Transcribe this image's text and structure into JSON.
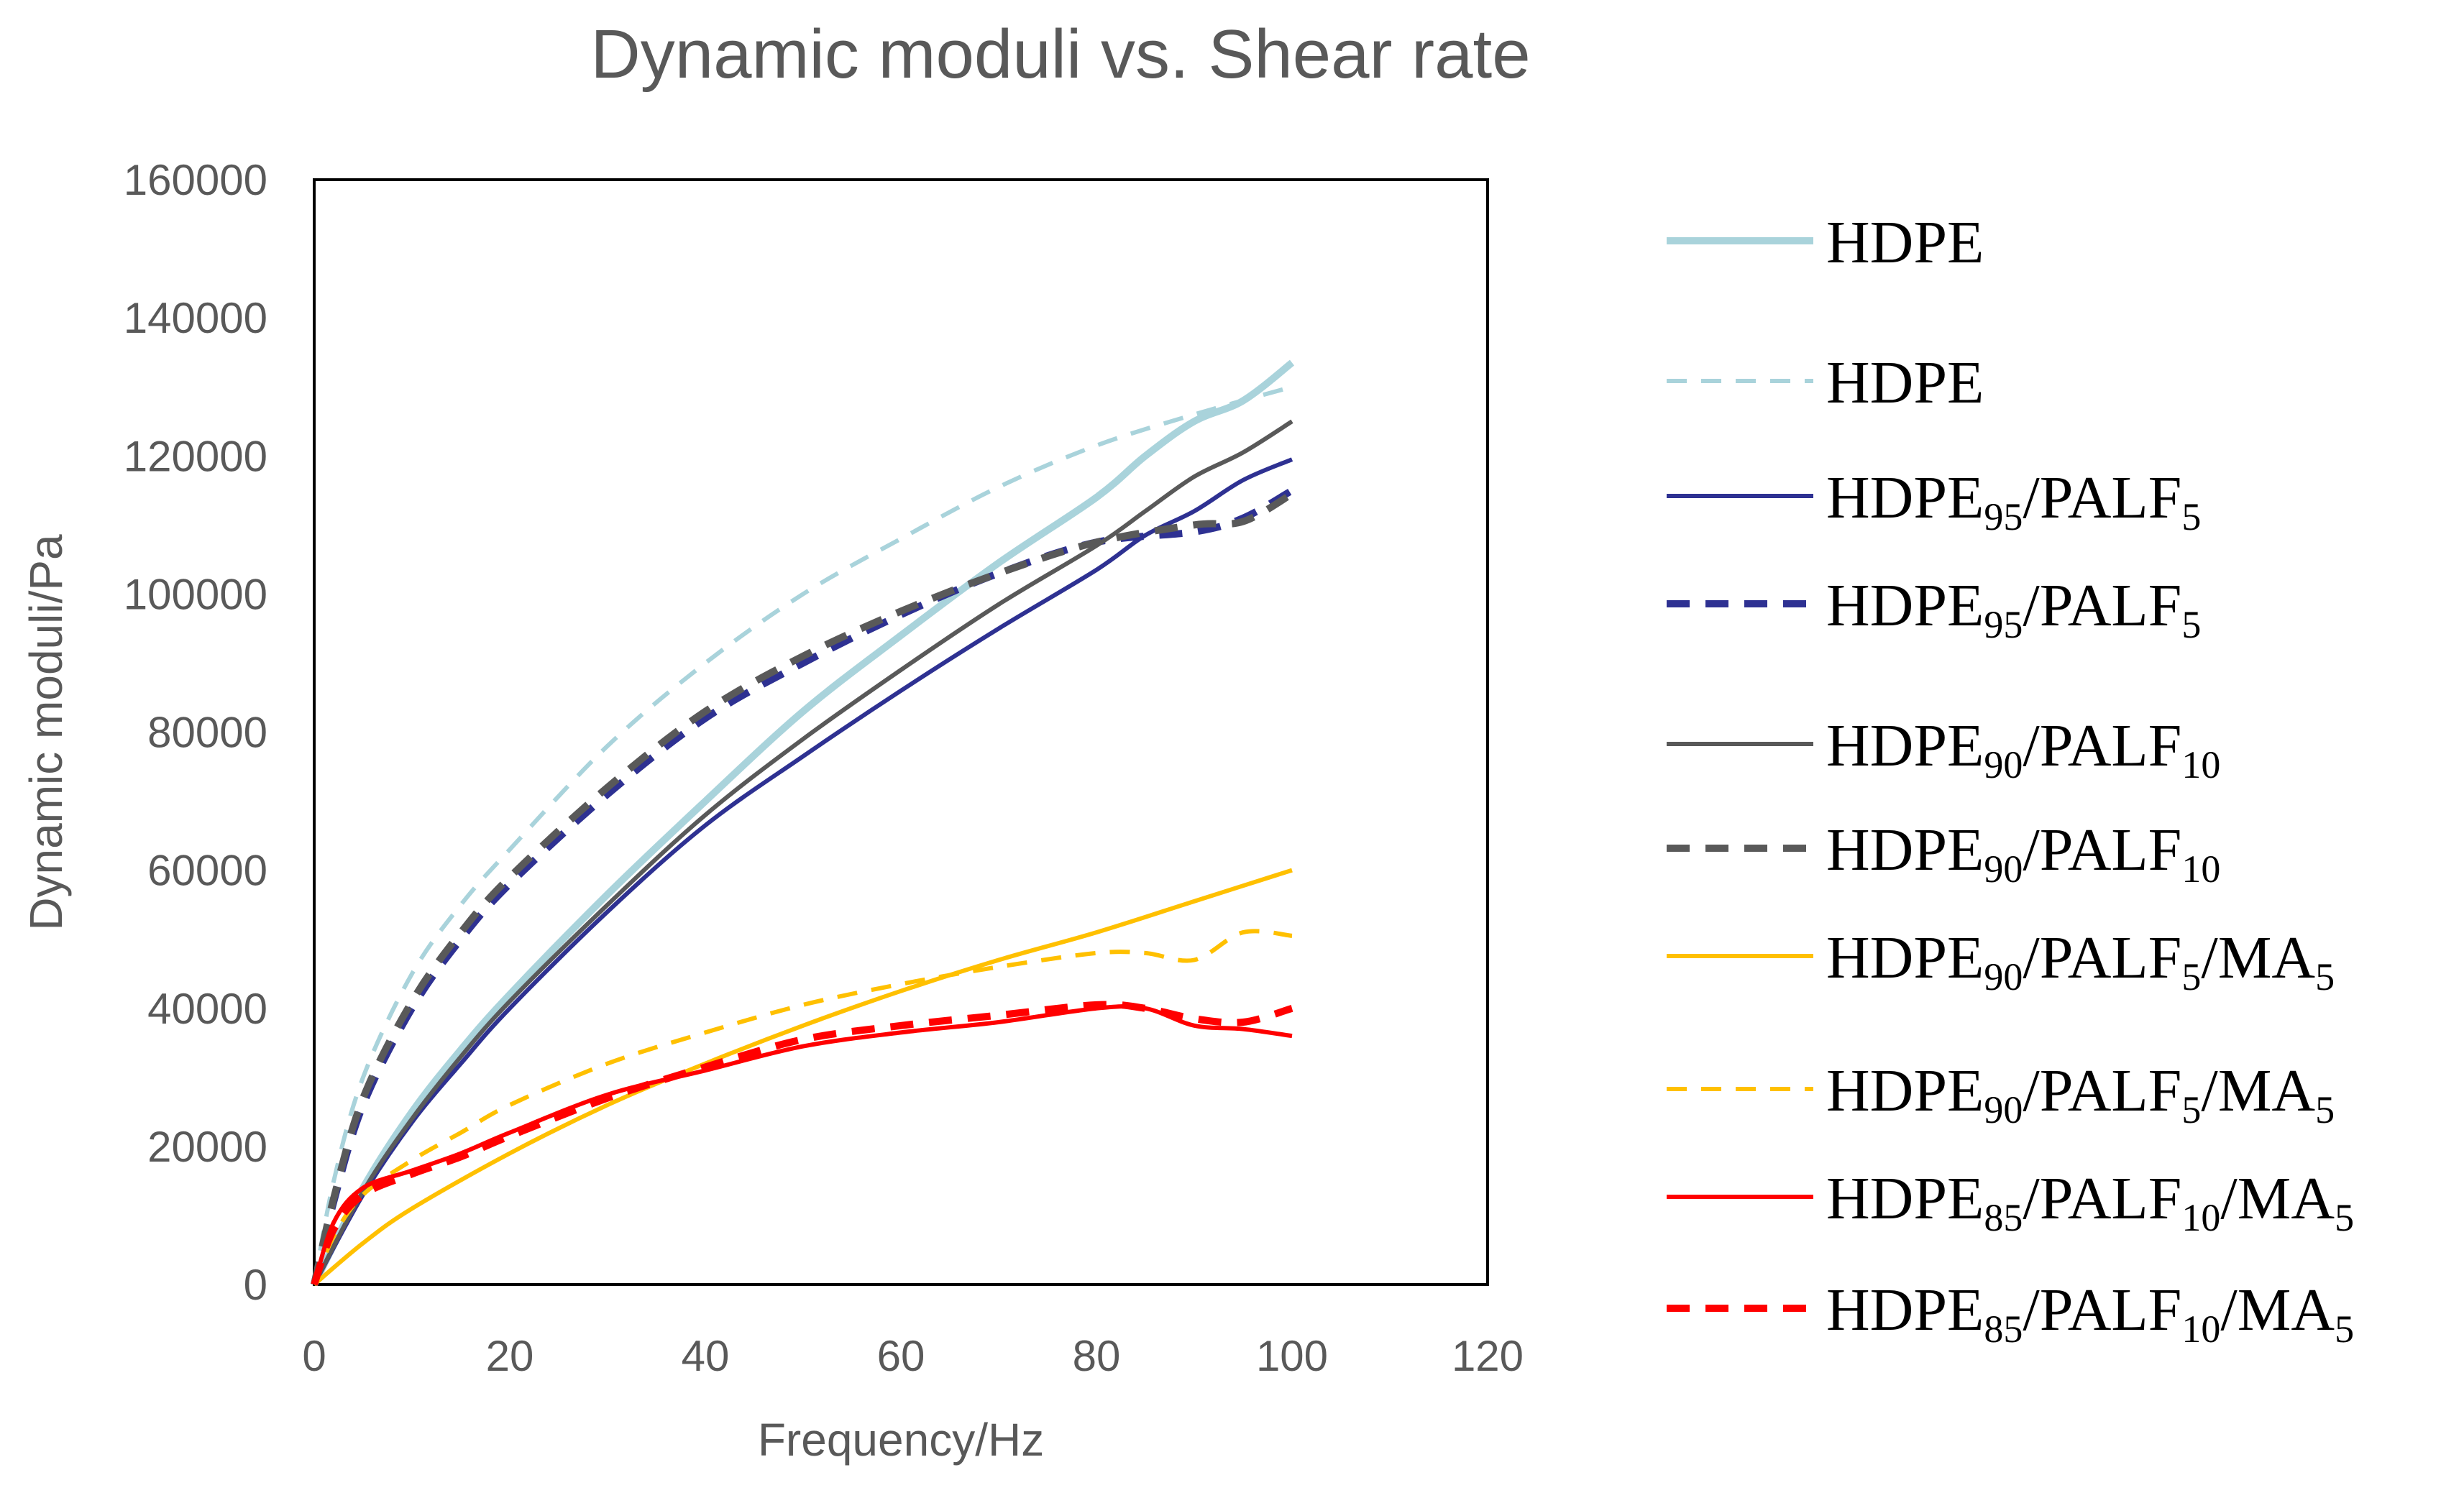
{
  "chart_data": {
    "type": "line",
    "title": "Dynamic moduli vs. Shear rate",
    "xlabel": "Frequency/Hz",
    "ylabel": "Dynamic moduli/Pa",
    "xlim": [
      0,
      120
    ],
    "ylim": [
      0,
      160000
    ],
    "xticks": [
      0,
      20,
      40,
      60,
      80,
      100,
      120
    ],
    "yticks": [
      0,
      20000,
      40000,
      60000,
      80000,
      100000,
      120000,
      140000,
      160000
    ],
    "xtick_labels": [
      "0",
      "20",
      "40",
      "60",
      "80",
      "100",
      "120"
    ],
    "ytick_labels": [
      "0",
      "20000",
      "40000",
      "60000",
      "80000",
      "100000",
      "120000",
      "140000",
      "160000"
    ],
    "grid": false,
    "legend_position": "right",
    "series": [
      {
        "name": "HDPE",
        "label_parts": [
          {
            "t": "HDPE"
          }
        ],
        "color": "#A9D3DB",
        "dash": "solid",
        "width": 10,
        "x": [
          0,
          5,
          10,
          15,
          20,
          30,
          40,
          50,
          60,
          70,
          80,
          85,
          90,
          95,
          100
        ],
        "y": [
          0,
          14000,
          25000,
          34000,
          42000,
          56500,
          70000,
          83000,
          94000,
          104500,
          114000,
          120000,
          125000,
          128000,
          133500
        ]
      },
      {
        "name": "HDPE",
        "label_parts": [
          {
            "t": "HDPE"
          }
        ],
        "color": "#A9D3DB",
        "dash": "dashed",
        "width": 6,
        "x": [
          0,
          2,
          5,
          10,
          15,
          20,
          30,
          40,
          50,
          60,
          70,
          80,
          90,
          100
        ],
        "y": [
          0,
          15000,
          30000,
          45000,
          55000,
          63000,
          78000,
          90000,
          100000,
          108000,
          115500,
          121500,
          126000,
          130000
        ]
      },
      {
        "name": "HDPE95/PALF5",
        "label_parts": [
          {
            "t": "HDPE"
          },
          {
            "t": "95",
            "sub": true
          },
          {
            "t": "/PALF"
          },
          {
            "t": "5",
            "sub": true
          }
        ],
        "color": "#2E3192",
        "dash": "solid",
        "width": 6,
        "x": [
          0,
          5,
          10,
          15,
          20,
          30,
          40,
          50,
          60,
          70,
          80,
          85,
          90,
          95,
          100
        ],
        "y": [
          0,
          13000,
          23500,
          32000,
          40000,
          54000,
          66500,
          76500,
          86000,
          95000,
          103500,
          108500,
          112000,
          116500,
          119500
        ]
      },
      {
        "name": "HDPE95/PALF5",
        "label_parts": [
          {
            "t": "HDPE"
          },
          {
            "t": "95",
            "sub": true
          },
          {
            "t": "/PALF"
          },
          {
            "t": "5",
            "sub": true
          }
        ],
        "color": "#2E3192",
        "dash": "dashed",
        "width": 10,
        "x": [
          0,
          2,
          5,
          10,
          15,
          20,
          30,
          40,
          50,
          60,
          70,
          80,
          90,
          95,
          100
        ],
        "y": [
          0,
          12000,
          26000,
          40000,
          50000,
          58000,
          71000,
          82000,
          90000,
          97000,
          103000,
          107500,
          109000,
          111000,
          115000
        ]
      },
      {
        "name": "HDPE90/PALF10",
        "label_parts": [
          {
            "t": "HDPE"
          },
          {
            "t": "90",
            "sub": true
          },
          {
            "t": "/PALF"
          },
          {
            "t": "10",
            "sub": true
          }
        ],
        "color": "#595959",
        "dash": "solid",
        "width": 6,
        "x": [
          0,
          5,
          10,
          15,
          20,
          30,
          40,
          50,
          60,
          70,
          80,
          85,
          90,
          95,
          100
        ],
        "y": [
          0,
          13500,
          24000,
          33000,
          41000,
          55000,
          68000,
          79000,
          89000,
          98500,
          107000,
          112000,
          117000,
          120500,
          125000
        ]
      },
      {
        "name": "HDPE90/PALF10",
        "label_parts": [
          {
            "t": "HDPE"
          },
          {
            "t": "90",
            "sub": true
          },
          {
            "t": "/PALF"
          },
          {
            "t": "10",
            "sub": true
          }
        ],
        "color": "#595959",
        "dash": "dashed",
        "width": 10,
        "x": [
          0,
          2,
          5,
          10,
          15,
          20,
          30,
          40,
          50,
          60,
          70,
          80,
          90,
          95,
          100
        ],
        "y": [
          0,
          12500,
          27000,
          41000,
          51000,
          59000,
          72000,
          83000,
          91000,
          97500,
          103000,
          107500,
          110000,
          110500,
          114500
        ]
      },
      {
        "name": "HDPE90/PALF5/MA5",
        "label_parts": [
          {
            "t": "HDPE"
          },
          {
            "t": "90",
            "sub": true
          },
          {
            "t": "/PALF"
          },
          {
            "t": "5",
            "sub": true
          },
          {
            "t": "/MA"
          },
          {
            "t": "5",
            "sub": true
          }
        ],
        "color": "#FFC000",
        "dash": "solid",
        "width": 6,
        "x": [
          0,
          5,
          10,
          20,
          30,
          40,
          50,
          60,
          70,
          80,
          90,
          100
        ],
        "y": [
          0,
          6000,
          11000,
          19000,
          26000,
          32000,
          37500,
          42500,
          47000,
          51000,
          55500,
          60000
        ]
      },
      {
        "name": "HDPE90/PALF5/MA5",
        "label_parts": [
          {
            "t": "HDPE"
          },
          {
            "t": "90",
            "sub": true
          },
          {
            "t": "/PALF"
          },
          {
            "t": "5",
            "sub": true
          },
          {
            "t": "/MA"
          },
          {
            "t": "5",
            "sub": true
          }
        ],
        "color": "#FFC000",
        "dash": "dashed",
        "width": 6,
        "x": [
          0,
          2,
          5,
          10,
          15,
          20,
          30,
          40,
          50,
          60,
          70,
          80,
          85,
          90,
          95,
          100
        ],
        "y": [
          0,
          7000,
          13000,
          18000,
          22000,
          26000,
          32000,
          36500,
          40500,
          43500,
          46000,
          48000,
          48000,
          47000,
          51000,
          50500
        ]
      },
      {
        "name": "HDPE85/PALF10/MA5",
        "label_parts": [
          {
            "t": "HDPE"
          },
          {
            "t": "85",
            "sub": true
          },
          {
            "t": "/PALF"
          },
          {
            "t": "10",
            "sub": true
          },
          {
            "t": "/MA"
          },
          {
            "t": "5",
            "sub": true
          }
        ],
        "color": "#FF0000",
        "dash": "solid",
        "width": 6,
        "x": [
          0,
          2,
          5,
          10,
          15,
          20,
          30,
          40,
          50,
          60,
          70,
          80,
          85,
          90,
          95,
          100
        ],
        "y": [
          0,
          9000,
          14000,
          16500,
          19000,
          22000,
          27500,
          31000,
          34500,
          36500,
          38000,
          40000,
          40000,
          37500,
          37000,
          36000
        ]
      },
      {
        "name": "HDPE85/PALF10/MA5",
        "label_parts": [
          {
            "t": "HDPE"
          },
          {
            "t": "85",
            "sub": true
          },
          {
            "t": "/PALF"
          },
          {
            "t": "10",
            "sub": true
          },
          {
            "t": "/MA"
          },
          {
            "t": "5",
            "sub": true
          }
        ],
        "color": "#FF0000",
        "dash": "dashed",
        "width": 10,
        "x": [
          0,
          2,
          5,
          10,
          15,
          20,
          30,
          40,
          50,
          60,
          70,
          80,
          85,
          90,
          95,
          100
        ],
        "y": [
          0,
          8000,
          13000,
          16000,
          18500,
          21500,
          27000,
          31500,
          35500,
          37500,
          39000,
          40500,
          40000,
          38500,
          38000,
          40000
        ]
      }
    ]
  }
}
